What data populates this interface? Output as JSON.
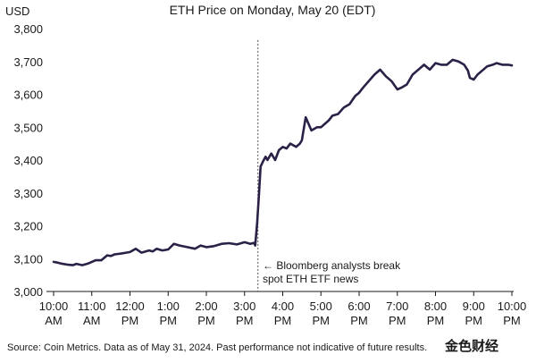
{
  "chart_data": {
    "type": "line",
    "title": "ETH Price on Monday, May 20 (EDT)",
    "unit_label": "USD",
    "ylim": [
      3000,
      3800
    ],
    "y_ticks": [
      3000,
      3100,
      3200,
      3300,
      3400,
      3500,
      3600,
      3700,
      3800
    ],
    "y_tick_labels": [
      "3,000",
      "3,100",
      "3,200",
      "3,300",
      "3,400",
      "3,500",
      "3,600",
      "3,700",
      "3,800"
    ],
    "xlim": [
      10.0,
      22.0
    ],
    "x_ticks": [
      10,
      11,
      12,
      13,
      14,
      15,
      16,
      17,
      18,
      19,
      20,
      21,
      22
    ],
    "x_tick_labels": [
      [
        "10:00",
        "AM"
      ],
      [
        "11:00",
        "AM"
      ],
      [
        "12:00",
        "PM"
      ],
      [
        "1:00",
        "PM"
      ],
      [
        "2:00",
        "PM"
      ],
      [
        "3:00",
        "PM"
      ],
      [
        "4:00",
        "PM"
      ],
      [
        "5:00",
        "PM"
      ],
      [
        "6:00",
        "PM"
      ],
      [
        "7:00",
        "PM"
      ],
      [
        "8:00",
        "PM"
      ],
      [
        "9:00",
        "PM"
      ],
      [
        "10:00",
        "PM"
      ]
    ],
    "line_color": "#2b2147",
    "series": [
      {
        "x": [
          10.0,
          10.1,
          10.2,
          10.35,
          10.5,
          10.6,
          10.75,
          10.9,
          11.0,
          11.1,
          11.25,
          11.4,
          11.5,
          11.6,
          11.75,
          11.9,
          12.0,
          12.15,
          12.3,
          12.5,
          12.6,
          12.7,
          12.85,
          13.0,
          13.15,
          13.3,
          13.5,
          13.7,
          13.85,
          14.0,
          14.2,
          14.4,
          14.6,
          14.8,
          15.0,
          15.15,
          15.25,
          15.28,
          15.33,
          15.38,
          15.42,
          15.48,
          15.55,
          15.6,
          15.7,
          15.8,
          15.9,
          16.0,
          16.1,
          16.2,
          16.35,
          16.45,
          16.5,
          16.6,
          16.75,
          16.9,
          17.0,
          17.1,
          17.2,
          17.3,
          17.45,
          17.6,
          17.75,
          17.9,
          18.0,
          18.1,
          18.25,
          18.4,
          18.55,
          18.7,
          18.85,
          19.0,
          19.1,
          19.25,
          19.4,
          19.5,
          19.7,
          19.85,
          20.0,
          20.15,
          20.3,
          20.45,
          20.6,
          20.75,
          20.85,
          20.9,
          21.0,
          21.1,
          21.2,
          21.35,
          21.5,
          21.6,
          21.75,
          21.9,
          22.0
        ],
        "values": [
          3090,
          3088,
          3085,
          3082,
          3080,
          3084,
          3080,
          3085,
          3090,
          3095,
          3095,
          3110,
          3108,
          3113,
          3115,
          3118,
          3120,
          3130,
          3118,
          3125,
          3122,
          3130,
          3125,
          3128,
          3145,
          3140,
          3135,
          3130,
          3140,
          3135,
          3138,
          3145,
          3147,
          3143,
          3150,
          3145,
          3148,
          3140,
          3210,
          3300,
          3380,
          3395,
          3410,
          3400,
          3420,
          3400,
          3430,
          3440,
          3435,
          3450,
          3440,
          3450,
          3460,
          3530,
          3490,
          3500,
          3500,
          3510,
          3520,
          3535,
          3540,
          3560,
          3570,
          3595,
          3605,
          3620,
          3640,
          3660,
          3675,
          3655,
          3640,
          3615,
          3620,
          3630,
          3660,
          3670,
          3690,
          3675,
          3695,
          3690,
          3690,
          3705,
          3700,
          3690,
          3672,
          3650,
          3645,
          3660,
          3670,
          3685,
          3690,
          3695,
          3690,
          3690,
          3688
        ]
      }
    ],
    "event_marker": {
      "x": 15.35,
      "label_lines": [
        "← Bloomberg analysts break",
        "spot ETH ETF news"
      ]
    },
    "source_note": "Source: Coin Metrics. Data as of May 31, 2024. Past performance not indicative of future results.",
    "watermark": "金色财经"
  }
}
